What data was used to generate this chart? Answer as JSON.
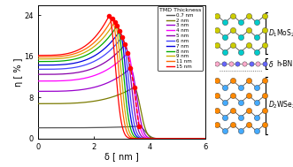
{
  "title": "",
  "xlabel": "δ [ nm ]",
  "ylabel": "η [ % ]",
  "xlim": [
    0,
    6
  ],
  "ylim": [
    0,
    26
  ],
  "yticks": [
    0,
    8,
    16,
    24
  ],
  "xticks": [
    0,
    2,
    4,
    6
  ],
  "legend_title": "TMD Thickness",
  "thicknesses": [
    "0.7 nm",
    "2 nm",
    "3 nm",
    "4 nm",
    "5 nm",
    "6 nm",
    "7 nm",
    "8 nm",
    "9 nm",
    "11 nm",
    "15 nm"
  ],
  "colors": [
    "#555555",
    "#7a7a00",
    "#9900cc",
    "#ff00ff",
    "#8800aa",
    "#4444ff",
    "#0000dd",
    "#00aa00",
    "#ccaa00",
    "#ff6600",
    "#ff0000"
  ],
  "peak_deltas": [
    3.62,
    3.45,
    3.32,
    3.22,
    3.12,
    3.02,
    2.93,
    2.84,
    2.75,
    2.66,
    2.55
  ],
  "eta_flat": [
    2.1,
    6.8,
    9.2,
    11.2,
    12.5,
    13.5,
    14.3,
    15.0,
    15.5,
    15.9,
    16.2
  ],
  "eta_peaks": [
    2.4,
    10.0,
    13.7,
    16.7,
    18.3,
    19.8,
    20.9,
    22.0,
    22.7,
    23.3,
    23.9
  ],
  "fall_sigma": [
    0.22,
    0.22,
    0.22,
    0.22,
    0.22,
    0.22,
    0.22,
    0.22,
    0.22,
    0.22,
    0.22
  ],
  "figsize": [
    3.31,
    1.89
  ],
  "dpi": 100,
  "mos2_color_mo": "#00cccc",
  "mos2_color_s": "#cccc00",
  "hbn_color_b": "#ffaacc",
  "hbn_color_n": "#6666ff",
  "wse2_color_w": "#44aaff",
  "wse2_color_se": "#ff8800"
}
